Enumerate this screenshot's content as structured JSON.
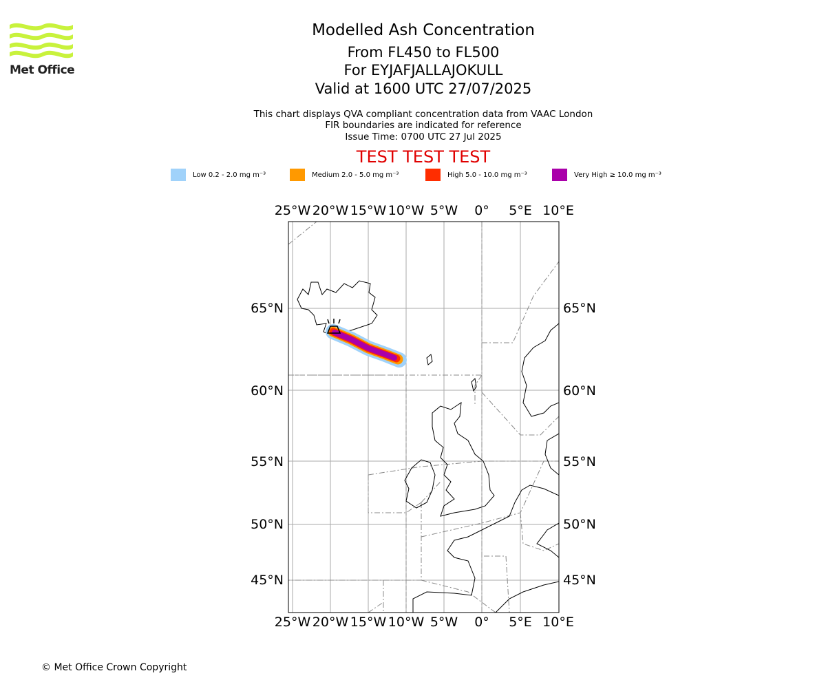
{
  "header": {
    "logo_text": "Met Office",
    "title": "Modelled Ash Concentration",
    "levels": "From FL450 to FL500",
    "volcano": "For EYJAFJALLAJOKULL",
    "valid": "Valid at 1600 UTC 27/07/2025",
    "note1": "This chart displays QVA compliant concentration data from VAAC London",
    "note2": "FIR boundaries are indicated for reference",
    "issue": "Issue Time: 0700 UTC 27 Jul 2025",
    "test_banner": "TEST TEST TEST"
  },
  "legend": [
    {
      "label": "Low 0.2 - 2.0 mg m⁻³",
      "color": "#a0d2fa"
    },
    {
      "label": "Medium 2.0 - 5.0 mg m⁻³",
      "color": "#ff9900"
    },
    {
      "label": "High 5.0 - 10.0 mg m⁻³",
      "color": "#ff2d00"
    },
    {
      "label": "Very High ≥ 10.0 mg m⁻³",
      "color": "#aa00aa"
    }
  ],
  "map": {
    "lon_ticks": [
      "25°W",
      "20°W",
      "15°W",
      "10°W",
      "5°W",
      "0°",
      "5°E",
      "10°E"
    ],
    "lat_ticks": [
      "65°N",
      "60°N",
      "55°N",
      "50°N",
      "45°N"
    ],
    "volcano_name": "EYJAFJALLAJOKULL"
  },
  "footer": {
    "copyright": "© Met Office Crown Copyright"
  }
}
